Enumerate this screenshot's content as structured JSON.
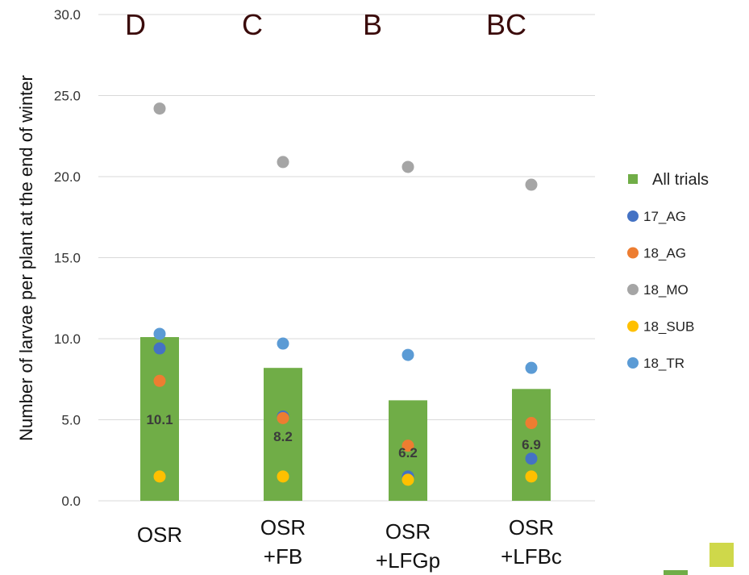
{
  "chart_data": {
    "type": "bar",
    "ylabel": "Number of larvae per plant at the end of winter",
    "ylim": [
      0,
      30
    ],
    "yticks": [
      "0.0",
      "5.0",
      "10.0",
      "15.0",
      "20.0",
      "25.0",
      "30.0"
    ],
    "grid": true,
    "legend_position": "right",
    "categories": [
      {
        "line1": "OSR",
        "line2": ""
      },
      {
        "line1": "OSR",
        "line2": "+FB"
      },
      {
        "line1": "OSR",
        "line2": "+LFGp"
      },
      {
        "line1": "OSR",
        "line2": "+LFBc"
      }
    ],
    "significance_letters": [
      "D",
      "C",
      "B",
      "BC"
    ],
    "bar_series": {
      "name": "All trials",
      "values": [
        10.1,
        8.2,
        6.2,
        6.9
      ],
      "labels": [
        "10.1",
        "8.2",
        "6.2",
        "6.9"
      ],
      "color": "#70ad47"
    },
    "point_series": [
      {
        "name": "17_AG",
        "values": [
          9.4,
          5.2,
          1.5,
          2.6
        ],
        "color": "#4472c4"
      },
      {
        "name": "18_AG",
        "values": [
          7.4,
          5.1,
          3.4,
          4.8
        ],
        "color": "#ed7d31"
      },
      {
        "name": "18_MO",
        "values": [
          24.2,
          20.9,
          20.6,
          19.5
        ],
        "color": "#a5a5a5"
      },
      {
        "name": "18_SUB",
        "values": [
          1.5,
          1.5,
          1.3,
          1.5
        ],
        "color": "#ffc000"
      },
      {
        "name": "18_TR",
        "values": [
          10.3,
          9.7,
          9.0,
          8.2
        ],
        "color": "#5b9bd5"
      }
    ]
  },
  "colors": {
    "gridline": "#d9d9d9",
    "corner_square_light": "#cfd84a",
    "corner_square_green": "#70ad47"
  }
}
